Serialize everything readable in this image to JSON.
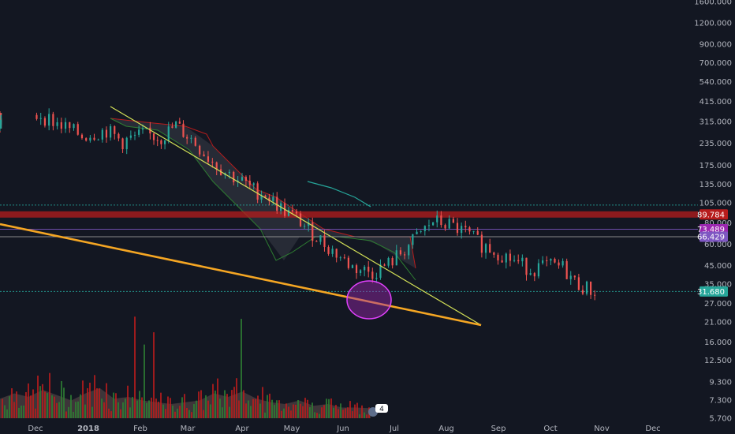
{
  "chart_data": {
    "type": "candlestick",
    "scale": "log",
    "grid": false,
    "x_tick_labels": [
      "Dec",
      "2018",
      "Feb",
      "Mar",
      "Apr",
      "May",
      "Jun",
      "Jul",
      "Aug",
      "Sep",
      "Oct",
      "Nov",
      "Dec"
    ],
    "y_tick_labels": [
      "1600.000",
      "1200.000",
      "900.000",
      "700.000",
      "540.000",
      "415.000",
      "315.000",
      "235.000",
      "175.000",
      "135.000",
      "105.000",
      "80.000",
      "60.000",
      "45.000",
      "35.000",
      "27.000",
      "21.000",
      "16.000",
      "12.500",
      "9.300",
      "7.300",
      "5.700"
    ],
    "y_ticks": [
      1600,
      1200,
      900,
      700,
      540,
      415,
      315,
      235,
      175,
      135,
      105,
      80,
      60,
      45,
      35,
      27,
      21,
      16,
      12.5,
      9.3,
      7.3,
      5.7
    ],
    "price_tags": [
      {
        "label": "89.784",
        "value": 89.784,
        "color": "#b71c1c"
      },
      {
        "label": "73.489",
        "value": 73.489,
        "color": "#9c27b0"
      },
      {
        "label": "66.429",
        "value": 66.429,
        "color": "#7e57c2"
      },
      {
        "label": "31.680",
        "value": 31.68,
        "color": "#26a69a"
      }
    ],
    "horizontal_levels": [
      {
        "value": 102,
        "style": "dotted",
        "color": "#26a69a"
      },
      {
        "value": 89.784,
        "style": "band",
        "color": "#b71c1c"
      },
      {
        "value": 73.489,
        "style": "solid",
        "color": "#7e57c2"
      },
      {
        "value": 66.429,
        "style": "solid",
        "color": "#9e9e9e"
      },
      {
        "value": 31.68,
        "style": "dotted",
        "color": "#26a69a"
      }
    ],
    "price_path": [
      [
        0,
        330
      ],
      [
        0.3,
        300
      ],
      [
        0.6,
        320
      ],
      [
        1,
        345
      ],
      [
        1.5,
        300
      ],
      [
        2,
        260
      ],
      [
        2.6,
        280
      ],
      [
        3,
        240
      ],
      [
        3.5,
        265
      ],
      [
        4,
        255
      ],
      [
        4.4,
        300
      ],
      [
        4.8,
        250
      ],
      [
        5.2,
        195
      ],
      [
        5.6,
        160
      ],
      [
        6,
        140
      ],
      [
        6.3,
        125
      ],
      [
        6.6,
        118
      ],
      [
        7,
        98
      ],
      [
        7.4,
        85
      ],
      [
        7.8,
        70
      ],
      [
        8.3,
        55
      ],
      [
        8.8,
        44
      ],
      [
        9.3,
        41
      ],
      [
        9.7,
        46
      ],
      [
        10.1,
        56
      ],
      [
        10.5,
        70
      ],
      [
        10.8,
        82
      ],
      [
        11.2,
        78
      ],
      [
        11.6,
        70
      ],
      [
        12,
        60
      ],
      [
        12.4,
        54
      ],
      [
        12.8,
        48
      ],
      [
        13.2,
        43
      ],
      [
        13.6,
        45
      ],
      [
        14,
        44
      ],
      [
        14.3,
        36
      ],
      [
        14.6,
        33
      ],
      [
        14.8,
        31.68
      ]
    ],
    "volume_level": [
      0.55,
      0.7,
      0.6,
      0.8,
      0.65,
      0.5,
      0.7,
      0.85,
      0.55,
      0.6,
      0.5,
      0.45,
      0.4,
      0.45,
      0.5,
      0.7,
      0.6,
      0.75,
      0.55,
      0.45,
      0.4,
      0.5,
      0.35,
      0.4,
      0.3,
      0.3,
      0.28
    ],
    "badge": {
      "label": "4"
    }
  }
}
